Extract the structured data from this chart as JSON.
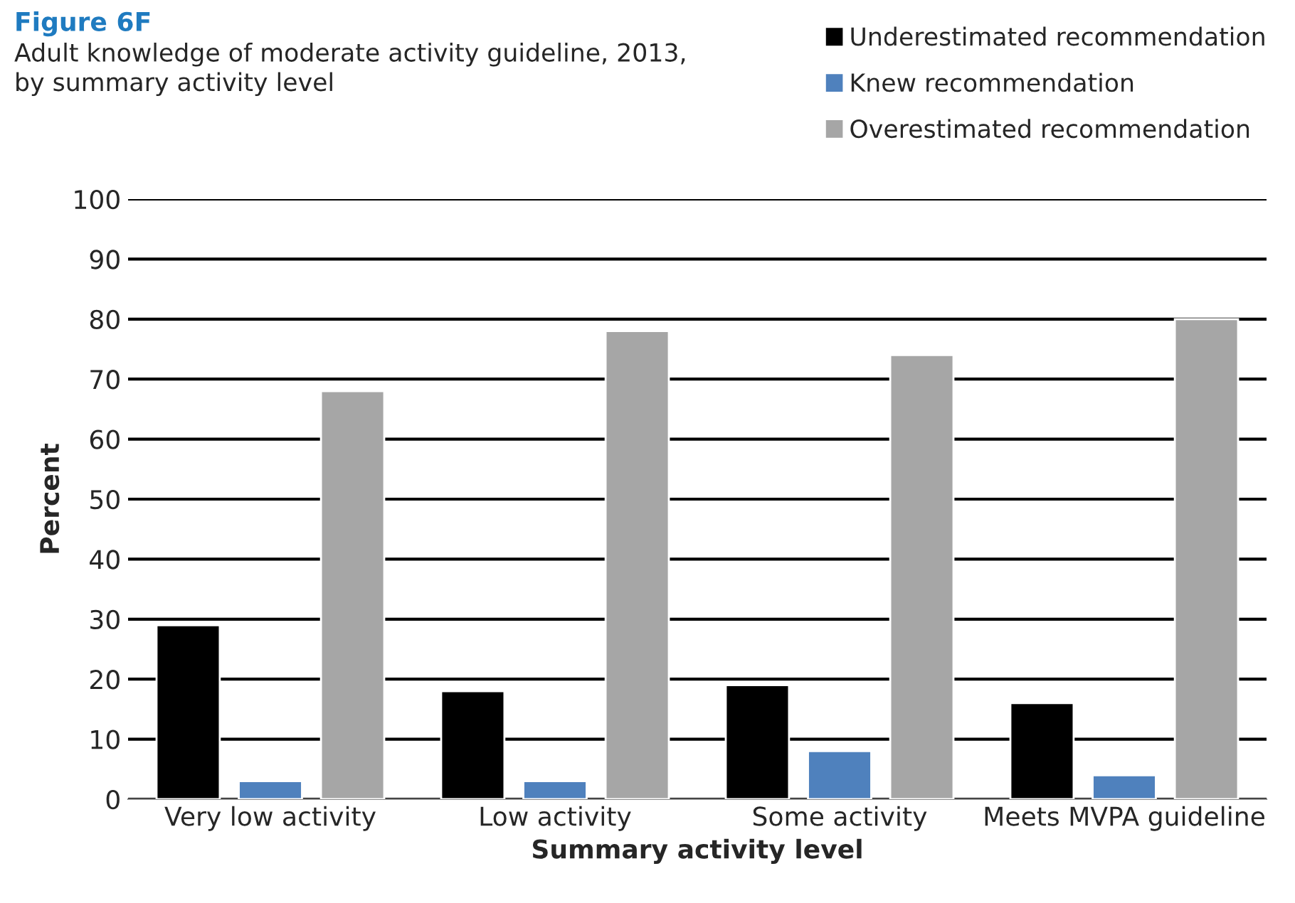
{
  "chart_data": {
    "type": "bar",
    "title": "Figure 6F",
    "subtitle": "Adult knowledge of moderate activity guideline, 2013,\nby summary activity level",
    "xlabel": "Summary activity level",
    "ylabel": "Percent",
    "categories": [
      "Very low activity",
      "Low activity",
      "Some activity",
      "Meets MVPA guideline"
    ],
    "series": [
      {
        "name": "Underestimated recommendation",
        "color": "#000000",
        "values": [
          29,
          18,
          19,
          16
        ]
      },
      {
        "name": "Knew recommendation",
        "color": "#4f81bd",
        "values": [
          3,
          3,
          8,
          4
        ]
      },
      {
        "name": "Overestimated recommendation",
        "color": "#a6a6a6",
        "values": [
          68,
          78,
          74,
          80
        ]
      }
    ],
    "ylim": [
      0,
      100
    ],
    "yticks": [
      0,
      10,
      20,
      30,
      40,
      50,
      60,
      70,
      80,
      90,
      100
    ],
    "grid": "y",
    "legend": "top right"
  }
}
